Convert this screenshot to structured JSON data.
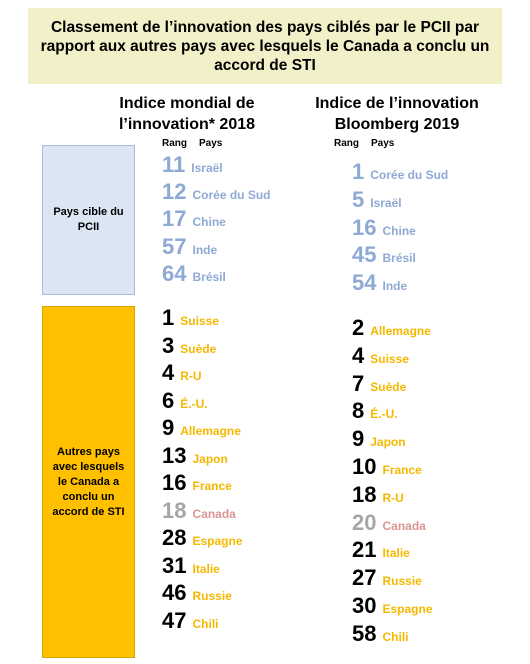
{
  "title": "Classement de l’innovation des pays ciblés par le PCII par rapport aux autres pays avec lesquels le Canada a conclu un accord de STI",
  "side_labels": {
    "target": "Pays cible du PCII",
    "others": "Autres pays avec lesquels le Canada a conclu un accord de STI"
  },
  "subheaders": {
    "rank": "Rang",
    "country": "Pays"
  },
  "colors": {
    "target": "#8ea9d4",
    "other": "#f5b800",
    "canada_rank": "#a6a6a6",
    "canada_name": "#d99694",
    "other_rank": "#000000"
  },
  "chart_data": {
    "type": "table",
    "columns": [
      {
        "title": "Indice mondial de l’innovation* 2018",
        "target_countries": [
          {
            "rank": "11",
            "country": "Israël"
          },
          {
            "rank": "12",
            "country": "Corée du Sud"
          },
          {
            "rank": "17",
            "country": "Chine"
          },
          {
            "rank": "57",
            "country": "Inde"
          },
          {
            "rank": "64",
            "country": "Brésil"
          }
        ],
        "other_countries": [
          {
            "rank": "1",
            "country": "Suisse"
          },
          {
            "rank": "3",
            "country": "Suède"
          },
          {
            "rank": "4",
            "country": "R-U"
          },
          {
            "rank": "6",
            "country": "É.-U."
          },
          {
            "rank": "9",
            "country": "Allemagne"
          },
          {
            "rank": "13",
            "country": "Japon"
          },
          {
            "rank": "16",
            "country": "France"
          },
          {
            "rank": "18",
            "country": "Canada",
            "canada": true
          },
          {
            "rank": "28",
            "country": "Espagne"
          },
          {
            "rank": "31",
            "country": "Italie"
          },
          {
            "rank": "46",
            "country": "Russie"
          },
          {
            "rank": "47",
            "country": "Chili"
          }
        ]
      },
      {
        "title": "Indice de l’innovation Bloomberg 2019",
        "target_countries": [
          {
            "rank": "1",
            "country": "Corée du Sud"
          },
          {
            "rank": "5",
            "country": "Israël"
          },
          {
            "rank": "16",
            "country": "Chine"
          },
          {
            "rank": "45",
            "country": "Brésil"
          },
          {
            "rank": "54",
            "country": "Inde"
          }
        ],
        "other_countries": [
          {
            "rank": "2",
            "country": "Allemagne"
          },
          {
            "rank": "4",
            "country": "Suisse"
          },
          {
            "rank": "7",
            "country": "Suède"
          },
          {
            "rank": "8",
            "country": "É.-U."
          },
          {
            "rank": "9",
            "country": "Japon"
          },
          {
            "rank": "10",
            "country": "France"
          },
          {
            "rank": "18",
            "country": "R-U"
          },
          {
            "rank": "20",
            "country": "Canada",
            "canada": true
          },
          {
            "rank": "21",
            "country": "Italie"
          },
          {
            "rank": "27",
            "country": "Russie"
          },
          {
            "rank": "30",
            "country": "Espagne"
          },
          {
            "rank": "58",
            "country": "Chili"
          }
        ]
      }
    ]
  }
}
